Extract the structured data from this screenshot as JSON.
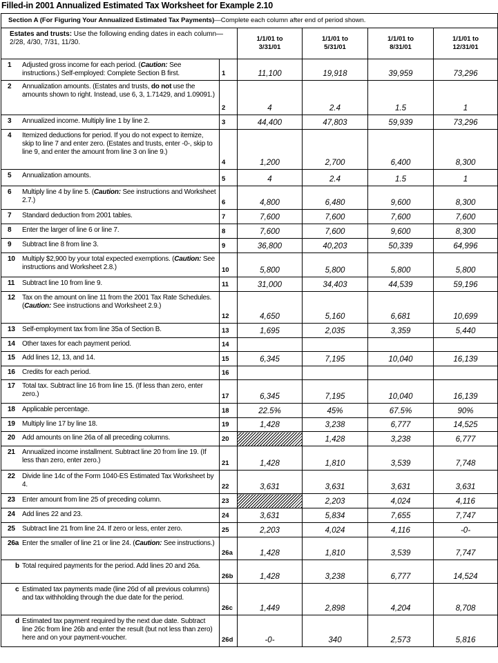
{
  "title": "Filled-in 2001 Annualized Estimated Tax Worksheet for Example 2.10",
  "section": {
    "bold": "Section A (For Figuring Your Annualized Estimated Tax Payments)",
    "rest": "—Complete each column after end of period shown."
  },
  "header": {
    "estates_bold": "Estates and trusts:",
    "estates_rest": " Use the following ending dates in each column—2/28, 4/30, 7/31, 11/30.",
    "columns": [
      [
        "1/1/01 to",
        "3/31/01"
      ],
      [
        "1/1/01 to",
        "5/31/01"
      ],
      [
        "1/1/01 to",
        "8/31/01"
      ],
      [
        "1/1/01 to",
        "12/31/01"
      ]
    ]
  },
  "rows": [
    {
      "num": "1",
      "line": "1",
      "desc": [
        [
          "Adjusted gross income for each period. (",
          ""
        ],
        [
          "Caution:",
          "bi"
        ],
        [
          " See instructions.) Self-employed: Complete Section B first.",
          ""
        ]
      ],
      "values": [
        "11,100",
        "19,918",
        "39,959",
        "73,296"
      ]
    },
    {
      "num": "2",
      "line": "2",
      "desc": [
        [
          "Annualization amounts. (Estates and trusts, ",
          ""
        ],
        [
          "do not",
          "b"
        ],
        [
          " use the amounts shown to right. Instead, use 6, 3, 1.71429, and 1.09091.)",
          ""
        ]
      ],
      "values": [
        "4",
        "2.4",
        "1.5",
        "1"
      ]
    },
    {
      "num": "3",
      "line": "3",
      "desc": [
        [
          "Annualized income. Multiply line 1 by line 2.",
          ""
        ]
      ],
      "values": [
        "44,400",
        "47,803",
        "59,939",
        "73,296"
      ]
    },
    {
      "num": "4",
      "line": "4",
      "desc": [
        [
          "Itemized deductions for period. If you do not expect to itemize, skip to line 7 and enter zero. (Estates and trusts, enter -0-, skip to line 9, and enter the amount from line 3 on line 9.)",
          ""
        ]
      ],
      "values": [
        "1,200",
        "2,700",
        "6,400",
        "8,300"
      ]
    },
    {
      "num": "5",
      "line": "5",
      "desc": [
        [
          "Annualization amounts.",
          ""
        ]
      ],
      "values": [
        "4",
        "2.4",
        "1.5",
        "1"
      ]
    },
    {
      "num": "6",
      "line": "6",
      "desc": [
        [
          "Multiply line 4 by line 5. (",
          ""
        ],
        [
          "Caution:",
          "bi"
        ],
        [
          " See instructions and Worksheet 2.7.)",
          ""
        ]
      ],
      "values": [
        "4,800",
        "6,480",
        "9,600",
        "8,300"
      ]
    },
    {
      "num": "7",
      "line": "7",
      "desc": [
        [
          "Standard deduction from 2001 tables.",
          ""
        ]
      ],
      "values": [
        "7,600",
        "7,600",
        "7,600",
        "7,600"
      ]
    },
    {
      "num": "8",
      "line": "8",
      "desc": [
        [
          "Enter the larger of line 6 or line 7.",
          ""
        ]
      ],
      "values": [
        "7,600",
        "7,600",
        "9,600",
        "8,300"
      ]
    },
    {
      "num": "9",
      "line": "9",
      "desc": [
        [
          "Subtract line 8 from line 3.",
          ""
        ]
      ],
      "values": [
        "36,800",
        "40,203",
        "50,339",
        "64,996"
      ]
    },
    {
      "num": "10",
      "line": "10",
      "desc": [
        [
          "Multiply $2,900 by your total expected exemptions. (",
          ""
        ],
        [
          "Caution:",
          "bi"
        ],
        [
          " See instructions and Worksheet 2.8.)",
          ""
        ]
      ],
      "values": [
        "5,800",
        "5,800",
        "5,800",
        "5,800"
      ]
    },
    {
      "num": "11",
      "line": "11",
      "desc": [
        [
          "Subtract line 10 from line 9.",
          ""
        ]
      ],
      "values": [
        "31,000",
        "34,403",
        "44,539",
        "59,196"
      ]
    },
    {
      "num": "12",
      "line": "12",
      "desc": [
        [
          "Tax on the amount on line 11 from the 2001 Tax Rate Schedules. (",
          ""
        ],
        [
          "Caution:",
          "bi"
        ],
        [
          " See instructions and Worksheet 2.9.)",
          ""
        ]
      ],
      "values": [
        "4,650",
        "5,160",
        "6,681",
        "10,699"
      ]
    },
    {
      "num": "13",
      "line": "13",
      "desc": [
        [
          "Self-employment tax from line 35a of Section B.",
          ""
        ]
      ],
      "values": [
        "1,695",
        "2,035",
        "3,359",
        "5,440"
      ]
    },
    {
      "num": "14",
      "line": "14",
      "desc": [
        [
          "Other taxes for each payment period.",
          ""
        ]
      ],
      "values": [
        "",
        "",
        "",
        ""
      ]
    },
    {
      "num": "15",
      "line": "15",
      "desc": [
        [
          "Add lines 12, 13, and 14.",
          ""
        ]
      ],
      "values": [
        "6,345",
        "7,195",
        "10,040",
        "16,139"
      ]
    },
    {
      "num": "16",
      "line": "16",
      "desc": [
        [
          "Credits for each period.",
          ""
        ]
      ],
      "values": [
        "",
        "",
        "",
        ""
      ]
    },
    {
      "num": "17",
      "line": "17",
      "desc": [
        [
          "Total tax. Subtract line 16 from line 15. (If less than zero, enter zero.)",
          ""
        ]
      ],
      "values": [
        "6,345",
        "7,195",
        "10,040",
        "16,139"
      ]
    },
    {
      "num": "18",
      "line": "18",
      "desc": [
        [
          "Applicable percentage.",
          ""
        ]
      ],
      "values": [
        "22.5%",
        "45%",
        "67.5%",
        "90%"
      ]
    },
    {
      "num": "19",
      "line": "19",
      "desc": [
        [
          "Multiply line 17 by line 18.",
          ""
        ]
      ],
      "values": [
        "1,428",
        "3,238",
        "6,777",
        "14,525"
      ]
    },
    {
      "num": "20",
      "line": "20",
      "desc": [
        [
          "Add amounts on line 26a of all preceding columns.",
          ""
        ]
      ],
      "values": [
        null,
        "1,428",
        "3,238",
        "6,777"
      ]
    },
    {
      "num": "21",
      "line": "21",
      "desc": [
        [
          "Annualized income installment. Subtract line 20 from line 19. (If less than zero, enter zero.)",
          ""
        ]
      ],
      "values": [
        "1,428",
        "1,810",
        "3,539",
        "7,748"
      ]
    },
    {
      "num": "22",
      "line": "22",
      "desc": [
        [
          "Divide line 14c of the Form 1040-ES Estimated Tax Worksheet by 4.",
          ""
        ]
      ],
      "values": [
        "3,631",
        "3,631",
        "3,631",
        "3,631"
      ]
    },
    {
      "num": "23",
      "line": "23",
      "desc": [
        [
          "Enter amount from line 25 of preceding column.",
          ""
        ]
      ],
      "values": [
        null,
        "2,203",
        "4,024",
        "4,116"
      ]
    },
    {
      "num": "24",
      "line": "24",
      "desc": [
        [
          "Add lines 22 and 23.",
          ""
        ]
      ],
      "values": [
        "3,631",
        "5,834",
        "7,655",
        "7,747"
      ]
    },
    {
      "num": "25",
      "line": "25",
      "desc": [
        [
          "Subtract line 21 from line 24. If zero or less, enter zero.",
          ""
        ]
      ],
      "values": [
        "2,203",
        "4,024",
        "4,116",
        "-0-"
      ]
    },
    {
      "num": "26a",
      "line": "26a",
      "desc": [
        [
          "Enter the smaller of line 21 or line 24. (",
          ""
        ],
        [
          "Caution:",
          "bi"
        ],
        [
          " See instructions.)",
          ""
        ]
      ],
      "values": [
        "1,428",
        "1,810",
        "3,539",
        "7,747"
      ]
    },
    {
      "num": "b",
      "line": "26b",
      "desc": [
        [
          "Total required payments for the period. Add lines 20 and 26a.",
          ""
        ]
      ],
      "values": [
        "1,428",
        "3,238",
        "6,777",
        "14,524"
      ]
    },
    {
      "num": "c",
      "line": "26c",
      "desc": [
        [
          "Estimated tax payments made (line 26d of all previous columns) and tax withholding through the due date for the period.",
          ""
        ]
      ],
      "values": [
        "1,449",
        "2,898",
        "4,204",
        "8,708"
      ]
    },
    {
      "num": "d",
      "line": "26d",
      "desc": [
        [
          "Estimated tax payment required by the next due date. Subtract line 26c from line 26b and enter the result (but not less than zero) here and on your payment-voucher.",
          ""
        ]
      ],
      "values": [
        "-0-",
        "340",
        "2,573",
        "5,816"
      ]
    }
  ]
}
